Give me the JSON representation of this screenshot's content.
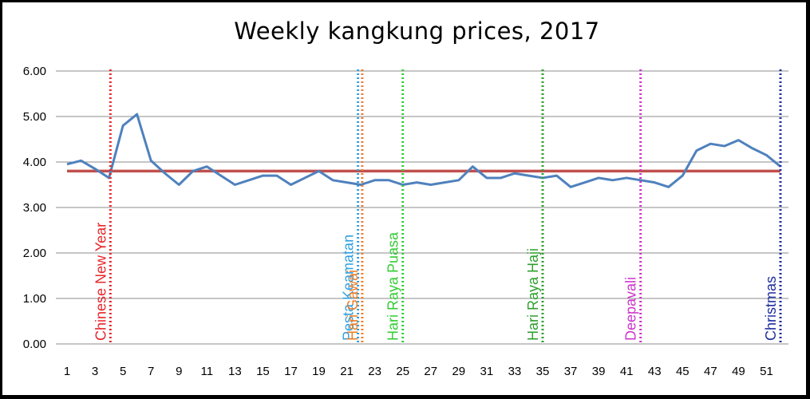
{
  "chart_data": {
    "type": "line",
    "title": "Weekly kangkung prices, 2017",
    "xlabel": "",
    "ylabel": "",
    "x": [
      1,
      2,
      3,
      4,
      5,
      6,
      7,
      8,
      9,
      10,
      11,
      12,
      13,
      14,
      15,
      16,
      17,
      18,
      19,
      20,
      21,
      22,
      23,
      24,
      25,
      26,
      27,
      28,
      29,
      30,
      31,
      32,
      33,
      34,
      35,
      36,
      37,
      38,
      39,
      40,
      41,
      42,
      43,
      44,
      45,
      46,
      47,
      48,
      49,
      50,
      51,
      52
    ],
    "xticks": [
      "1",
      "3",
      "5",
      "7",
      "9",
      "11",
      "13",
      "15",
      "17",
      "19",
      "21",
      "23",
      "25",
      "27",
      "29",
      "31",
      "33",
      "35",
      "37",
      "39",
      "41",
      "43",
      "45",
      "47",
      "49",
      "51"
    ],
    "yticks": [
      "0.00",
      "1.00",
      "2.00",
      "3.00",
      "4.00",
      "5.00",
      "6.00"
    ],
    "ylim": [
      0,
      6
    ],
    "grid": true,
    "series": [
      {
        "color": "#4f81bd",
        "values": [
          3.95,
          4.03,
          3.85,
          3.65,
          4.8,
          5.05,
          4.03,
          3.75,
          3.5,
          3.8,
          3.9,
          3.7,
          3.5,
          3.6,
          3.7,
          3.7,
          3.5,
          3.65,
          3.8,
          3.6,
          3.55,
          3.5,
          3.6,
          3.6,
          3.5,
          3.55,
          3.5,
          3.55,
          3.6,
          3.9,
          3.65,
          3.65,
          3.75,
          3.7,
          3.65,
          3.7,
          3.45,
          3.55,
          3.65,
          3.6,
          3.65,
          3.6,
          3.55,
          3.45,
          3.7,
          4.25,
          4.4,
          4.35,
          4.48,
          4.3,
          4.15,
          3.9
        ]
      },
      {
        "color": "#c0504d",
        "values": [
          3.8,
          3.8,
          3.8,
          3.8,
          3.8,
          3.8,
          3.8,
          3.8,
          3.8,
          3.8,
          3.8,
          3.8,
          3.8,
          3.8,
          3.8,
          3.8,
          3.8,
          3.8,
          3.8,
          3.8,
          3.8,
          3.8,
          3.8,
          3.8,
          3.8,
          3.8,
          3.8,
          3.8,
          3.8,
          3.8,
          3.8,
          3.8,
          3.8,
          3.8,
          3.8,
          3.8,
          3.8,
          3.8,
          3.8,
          3.8,
          3.8,
          3.8,
          3.8,
          3.8,
          3.8,
          3.8,
          3.8,
          3.8,
          3.8,
          3.8,
          3.8,
          3.8
        ]
      }
    ],
    "events": [
      {
        "label": "Chinese New Year",
        "week": 4.1,
        "color": "#e8262b",
        "line_color": "#e8262b"
      },
      {
        "label": "Pesta Keamatan",
        "week": 21.8,
        "color": "#2e9fe0",
        "line_color": "#2e9fe0"
      },
      {
        "label": "Hari Gawai",
        "week": 22.1,
        "color": "#f07b22",
        "line_color": "#f07b22"
      },
      {
        "label": "Hari Raya Puasa",
        "week": 25.0,
        "color": "#33cc33",
        "line_color": "#33cc33"
      },
      {
        "label": "Hari Raya Haji",
        "week": 35.0,
        "color": "#2ea02e",
        "line_color": "#2ea02e"
      },
      {
        "label": "Deepavali",
        "week": 42.0,
        "color": "#cc33cc",
        "line_color": "#cc33cc"
      },
      {
        "label": "Christmas",
        "week": 52.0,
        "color": "#1f2f9f",
        "line_color": "#1f2f9f"
      }
    ]
  }
}
